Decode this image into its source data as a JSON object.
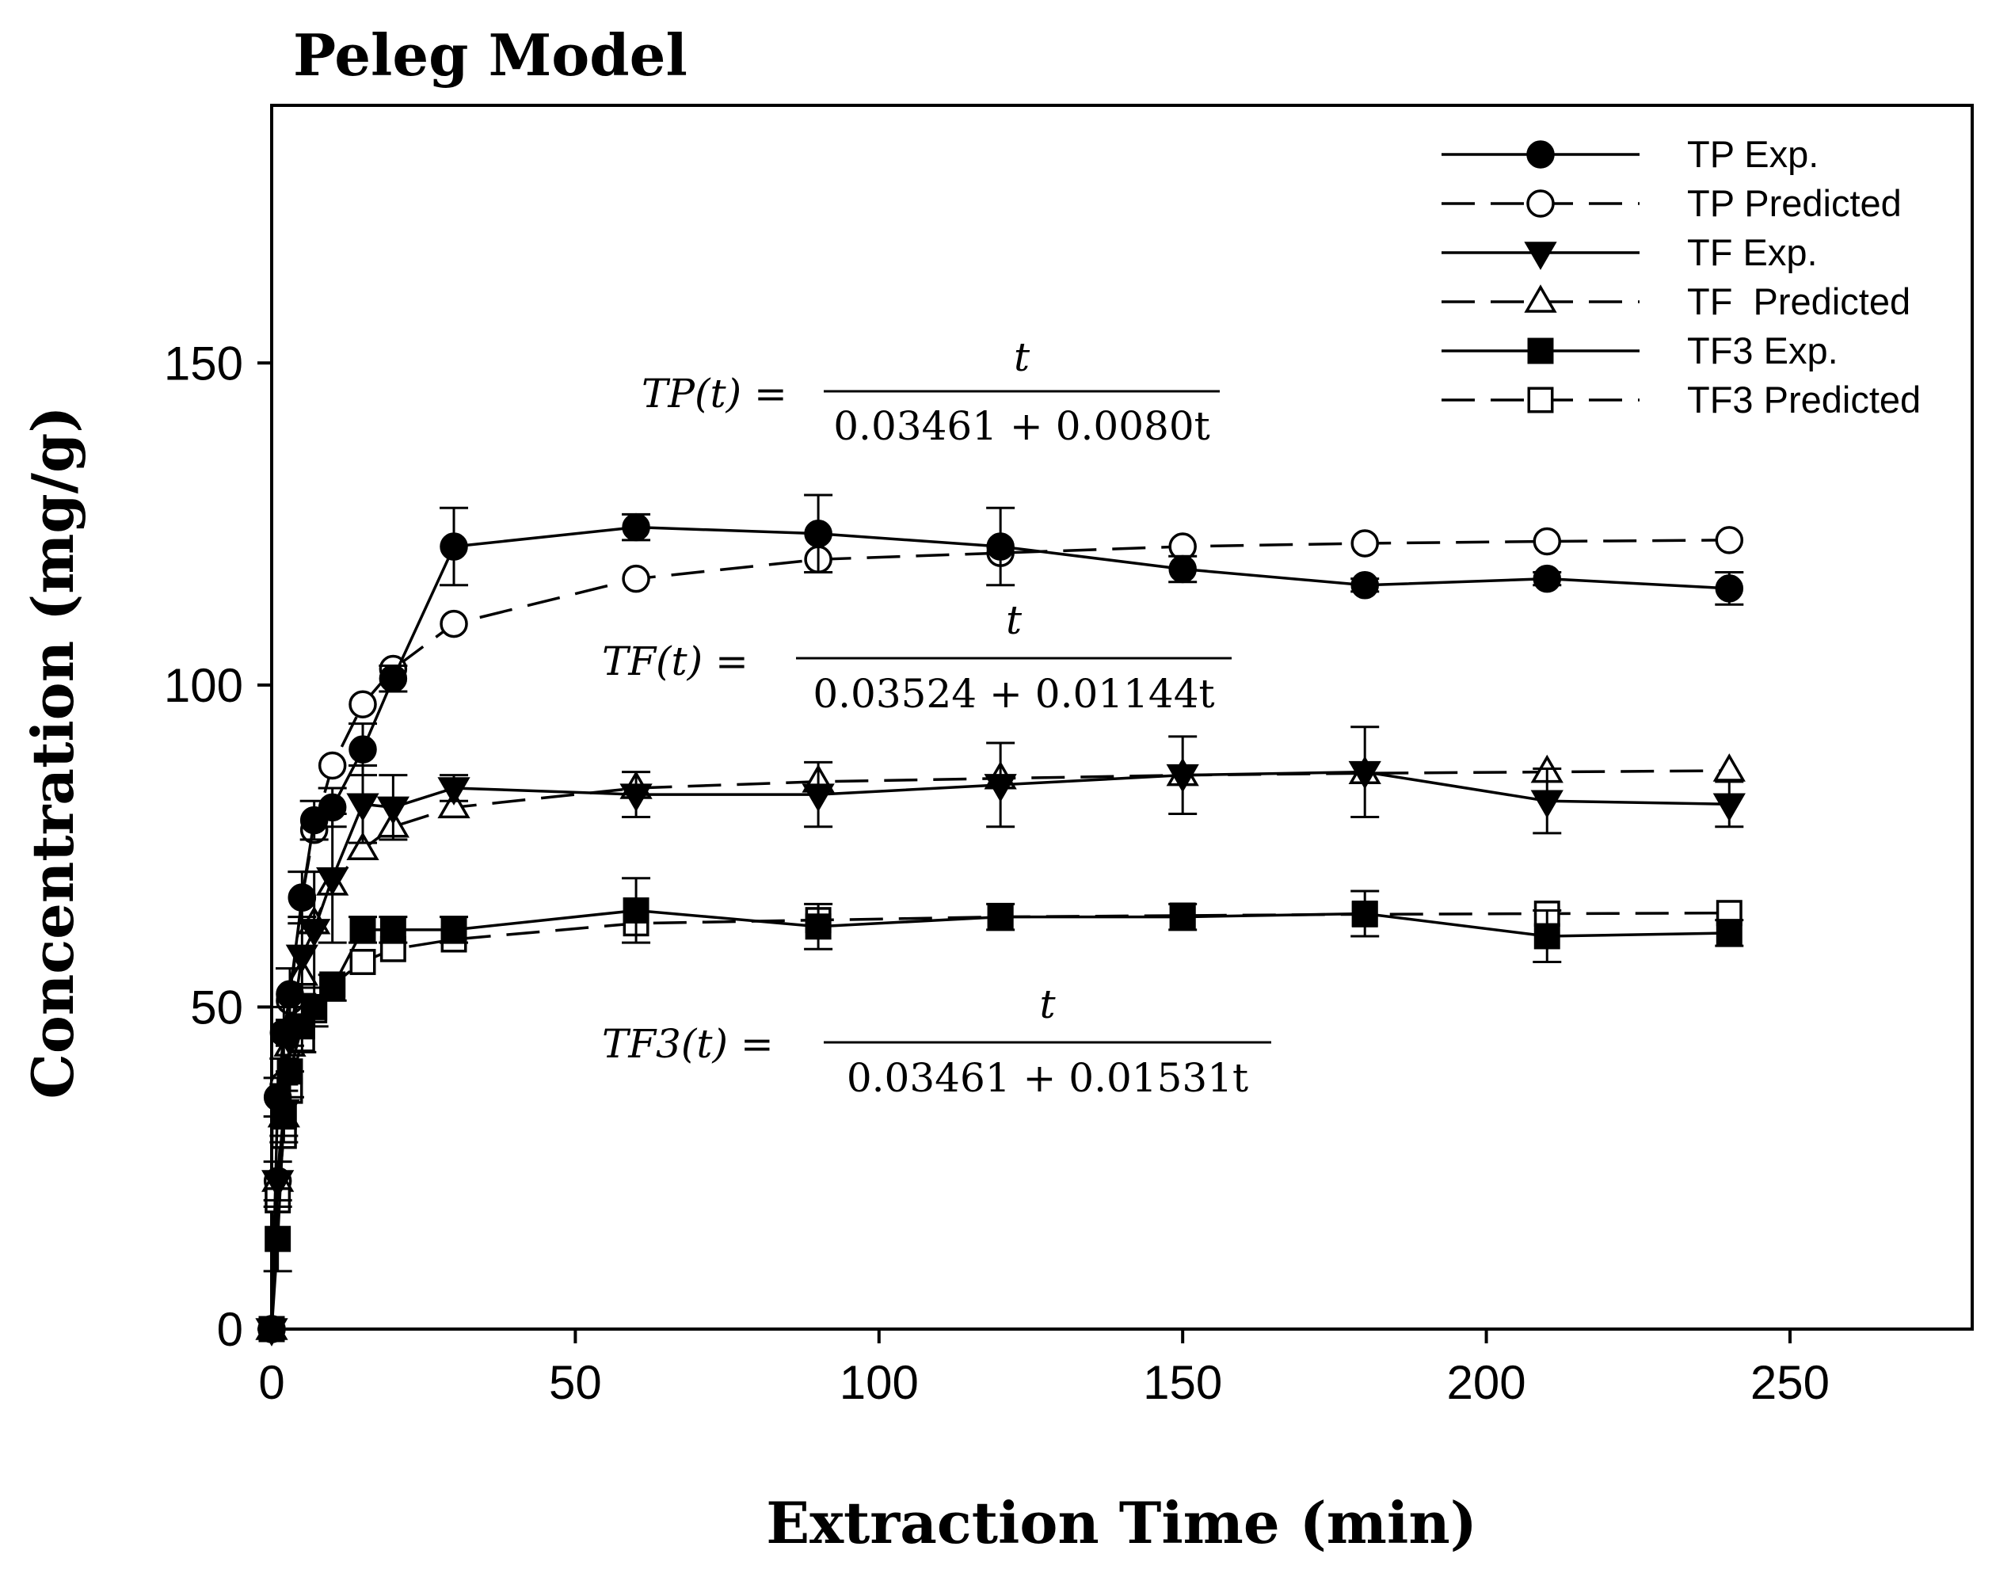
{
  "chart_data": {
    "type": "line",
    "title": "Peleg Model",
    "xlabel": "Extraction Time (min)",
    "ylabel": "Concentration (mg/g)",
    "xlim": [
      0,
      280
    ],
    "ylim": [
      0,
      190
    ],
    "xticks": [
      0,
      50,
      100,
      150,
      200,
      250
    ],
    "yticks": [
      0,
      50,
      100,
      150
    ],
    "legend_position": "top-right",
    "series": [
      {
        "name": "TP Exp.",
        "line": "solid",
        "marker": "circle",
        "filled": true,
        "x": [
          0,
          1,
          2,
          3,
          5,
          7,
          10,
          15,
          20,
          30,
          60,
          90,
          120,
          150,
          180,
          210,
          240
        ],
        "y": [
          0,
          36,
          46,
          52,
          67,
          79,
          81,
          90,
          101,
          121.5,
          124.5,
          123.5,
          121.5,
          118,
          115.5,
          116.5,
          115
        ],
        "err": [
          0,
          3,
          4,
          4,
          4,
          3,
          3,
          4,
          2,
          6,
          2,
          6,
          6,
          2,
          1,
          1,
          2.5
        ]
      },
      {
        "name": "TP Predicted",
        "line": "dashed",
        "marker": "circle",
        "filled": false,
        "x": [
          0,
          1,
          2,
          3,
          5,
          7,
          10,
          15,
          20,
          30,
          60,
          90,
          120,
          150,
          180,
          210,
          240
        ],
        "y": [
          0,
          23,
          38,
          51,
          67,
          77.5,
          87.5,
          97,
          102.5,
          109.5,
          116.5,
          119.5,
          120.5,
          121.5,
          122,
          122.3,
          122.5
        ],
        "err": []
      },
      {
        "name": "TF Exp.",
        "line": "solid",
        "marker": "triangle-down",
        "filled": true,
        "x": [
          0,
          1,
          2,
          3,
          5,
          7,
          10,
          15,
          20,
          30,
          60,
          90,
          120,
          150,
          180,
          210,
          240
        ],
        "y": [
          0,
          23,
          34,
          45,
          58,
          62,
          70,
          81.5,
          81,
          84,
          83,
          83,
          84.5,
          86,
          86.5,
          82,
          81.5
        ],
        "err": [
          0,
          3,
          4,
          5,
          6,
          9,
          10,
          6,
          5,
          2,
          3.5,
          5,
          6.5,
          6,
          7,
          5,
          3.5
        ]
      },
      {
        "name": "TF  Predicted",
        "line": "dashed",
        "marker": "triangle-up",
        "filled": false,
        "x": [
          0,
          1,
          2,
          3,
          5,
          7,
          10,
          15,
          20,
          30,
          60,
          90,
          120,
          150,
          180,
          210,
          240
        ],
        "y": [
          0,
          23,
          33,
          44,
          55,
          63,
          69,
          74.5,
          78,
          81,
          84,
          85,
          85.5,
          86,
          86.3,
          86.5,
          86.7
        ],
        "err": []
      },
      {
        "name": "TF3 Exp.",
        "line": "solid",
        "marker": "square",
        "filled": true,
        "x": [
          0,
          1,
          2,
          3,
          5,
          7,
          10,
          15,
          20,
          30,
          60,
          90,
          120,
          150,
          180,
          210,
          240
        ],
        "y": [
          0,
          14,
          33,
          40,
          47,
          50,
          53,
          62,
          62,
          62,
          65,
          62.5,
          64,
          64,
          64.5,
          61,
          61.5
        ],
        "err": [
          0,
          5,
          4,
          4,
          4,
          3,
          2,
          2,
          2,
          2,
          5,
          3.5,
          2,
          2,
          3.5,
          4,
          2
        ]
      },
      {
        "name": "TF3 Predicted",
        "line": "dashed",
        "marker": "square",
        "filled": false,
        "x": [
          0,
          1,
          2,
          3,
          5,
          7,
          10,
          15,
          20,
          30,
          60,
          90,
          120,
          150,
          180,
          210,
          240
        ],
        "y": [
          0,
          20,
          30,
          37,
          45,
          49.5,
          53.5,
          57,
          59,
          60.5,
          63,
          63.5,
          64,
          64.2,
          64.4,
          64.5,
          64.6
        ],
        "err": []
      }
    ],
    "equations": [
      {
        "lhs": "TP(t) =",
        "numerator": "t",
        "denominator": "0.03461 + 0.0080t",
        "anchor": [
          100,
          142
        ]
      },
      {
        "lhs": "TF(t) =",
        "numerator": "t",
        "denominator": "0.03524 + 0.01144t",
        "anchor": [
          103,
          101
        ]
      },
      {
        "lhs": "TF3(t) =",
        "numerator": "t",
        "denominator": "0.03461 + 0.01531t",
        "anchor": [
          103,
          42.5
        ]
      }
    ]
  }
}
